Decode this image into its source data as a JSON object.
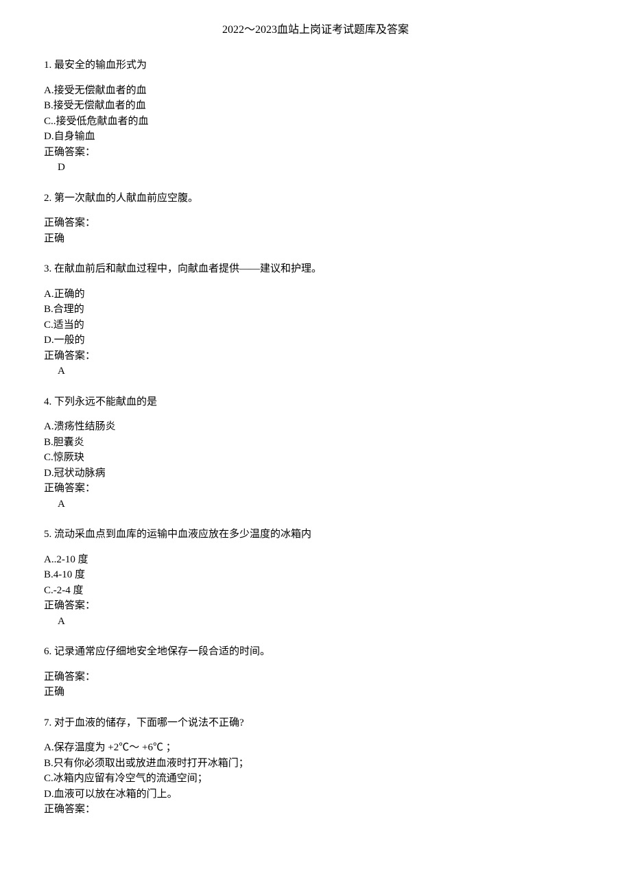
{
  "title": "2022～2023血站上岗证考试题库及答案",
  "questions": [
    {
      "number": "1.",
      "text": "最安全的输血形式为",
      "options": [
        "A.接受无偿献血者的血",
        "B.接受无偿献血者的血",
        "C..接受低危献血者的血",
        "D.自身输血"
      ],
      "answerLabel": "正确答案：",
      "answerValue": "D",
      "indented": true
    },
    {
      "number": "2.",
      "text": "第一次献血的人献血前应空腹。",
      "options": [],
      "answerLabel": "正确答案：",
      "answerValue": "正确",
      "indented": false
    },
    {
      "number": "3.",
      "text": "在献血前后和献血过程中，向献血者提供——建议和护理。",
      "options": [
        "A.正确的",
        "B.合理的",
        "C.适当的",
        "D.一般的"
      ],
      "answerLabel": "正确答案：",
      "answerValue": "A",
      "indented": true
    },
    {
      "number": "4.",
      "text": "下列永远不能献血的是",
      "options": [
        "A.溃疡性结肠炎",
        "B.胆囊炎",
        "C.惊厥玦",
        "D.冠状动脉病"
      ],
      "answerLabel": "正确答案：",
      "answerValue": "A",
      "indented": true
    },
    {
      "number": "5.",
      "text": "流动采血点到血库的运输中血液应放在多少温度的冰箱内",
      "options": [
        "A..2-10 度",
        "B.4-10 度",
        "C.-2-4 度"
      ],
      "answerLabel": "正确答案：",
      "answerValue": "A",
      "indented": true
    },
    {
      "number": "6.",
      "text": "记录通常应仔细地安全地保存一段合适的时间。",
      "options": [],
      "answerLabel": "正确答案：",
      "answerValue": "正确",
      "indented": false
    },
    {
      "number": "7.",
      "text": "对于血液的储存，下面哪一个说法不正确?",
      "options": [
        "A.保存温度为 +2℃～ +6℃ ；",
        "B.只有你必须取出或放进血液时打开冰箱门；",
        "C.冰箱内应留有冷空气的流通空间；",
        "D.血液可以放在冰箱的门上。"
      ],
      "answerLabel": "正确答案：",
      "answerValue": "",
      "indented": false
    }
  ]
}
